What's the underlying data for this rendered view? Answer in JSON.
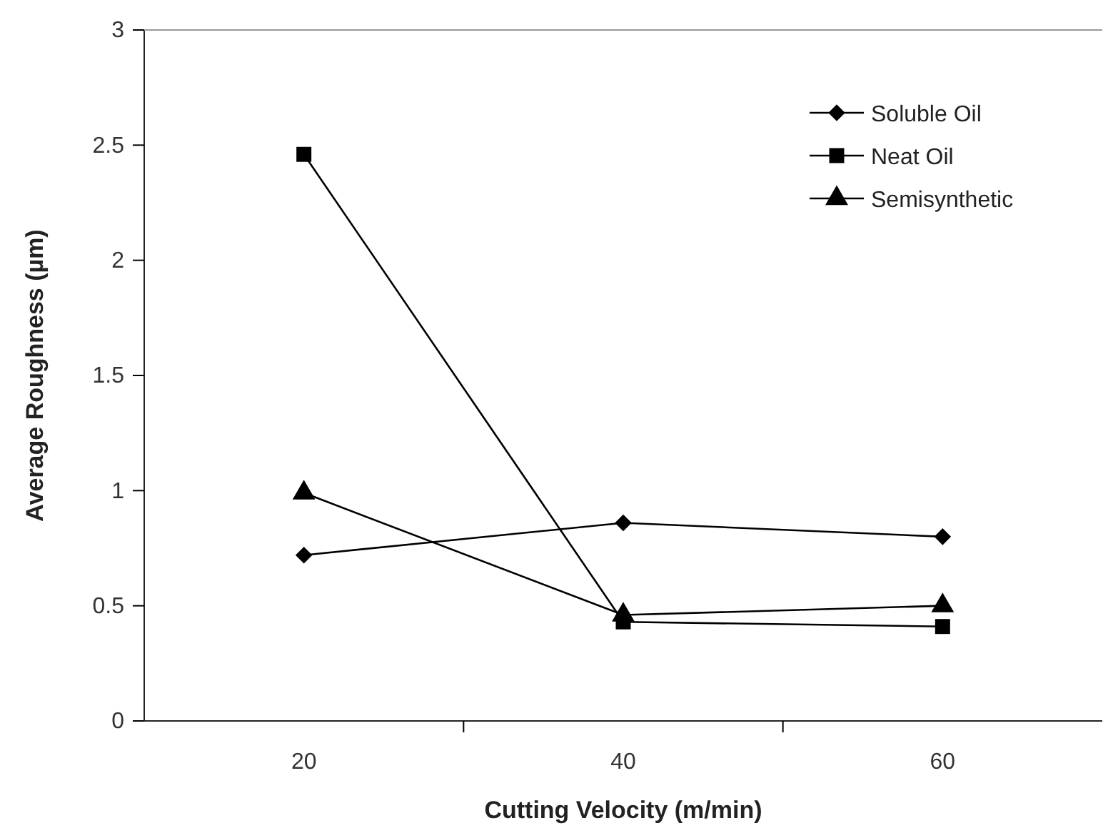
{
  "chart_data": {
    "type": "line",
    "xlabel": "Cutting Velocity (m/min)",
    "ylabel": "Average Roughness (µm)",
    "x": [
      20,
      40,
      60
    ],
    "series": [
      {
        "name": "Soluble Oil",
        "color": "#000000",
        "marker": "diamond",
        "values": [
          0.72,
          0.86,
          0.8
        ]
      },
      {
        "name": "Neat Oil",
        "color": "#000000",
        "marker": "square",
        "values": [
          2.46,
          0.43,
          0.41
        ]
      },
      {
        "name": "Semisynthetic",
        "color": "#000000",
        "marker": "triangle",
        "values": [
          0.99,
          0.46,
          0.5
        ]
      }
    ],
    "xlim": [
      10,
      70
    ],
    "xticks": [
      20,
      {
        "value": 30,
        "label": null
      },
      40,
      {
        "value": 50,
        "label": null
      },
      60
    ],
    "ylim": [
      0,
      3
    ],
    "yticks": [
      0,
      0.5,
      1,
      1.5,
      2,
      2.5,
      3
    ],
    "grid": false,
    "legend": "top right",
    "line_style": "solid"
  }
}
